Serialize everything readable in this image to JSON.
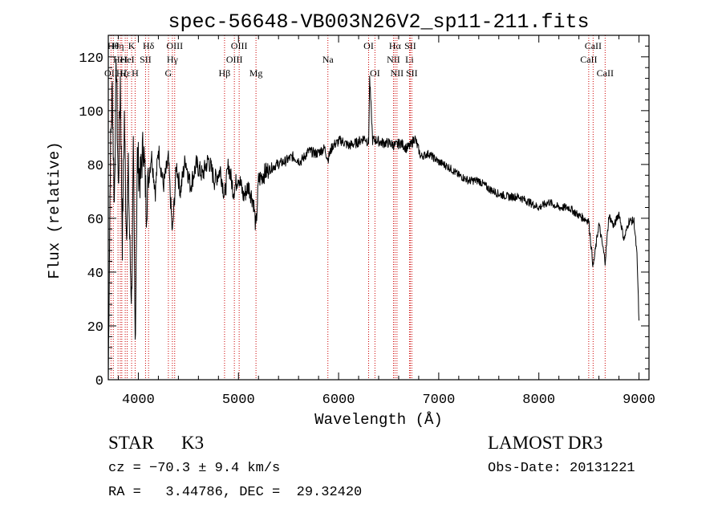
{
  "chart_data": {
    "type": "line",
    "title": "spec-56648-VB003N26V2_sp11-211.fits",
    "xlabel": "Wavelength (Å)",
    "ylabel": "Flux (relative)",
    "xlim": [
      3700,
      9100
    ],
    "ylim": [
      0,
      1280
    ],
    "xticks": [
      4000,
      5000,
      6000,
      7000,
      8000,
      9000
    ],
    "xtick_labels": [
      "4000",
      "5000",
      "6000",
      "7000",
      "8000",
      "9000"
    ],
    "yticks": [
      0,
      200,
      400,
      600,
      800,
      1000,
      1200
    ],
    "ytick_labels": [
      "0",
      "20",
      "40",
      "60",
      "80",
      "100",
      "120"
    ],
    "line_color": "#cc0000",
    "spectrum_color": "#000000",
    "series": [
      {
        "name": "flux",
        "x": [
          3700,
          3720,
          3740,
          3760,
          3780,
          3800,
          3820,
          3840,
          3860,
          3880,
          3900,
          3920,
          3933,
          3950,
          3968,
          3990,
          4020,
          4050,
          4080,
          4102,
          4130,
          4170,
          4200,
          4250,
          4300,
          4340,
          4380,
          4420,
          4470,
          4520,
          4580,
          4640,
          4700,
          4760,
          4820,
          4861,
          4900,
          4950,
          5000,
          5050,
          5100,
          5150,
          5175,
          5200,
          5240,
          5300,
          5380,
          5460,
          5540,
          5620,
          5700,
          5780,
          5860,
          5893,
          5940,
          6020,
          6100,
          6180,
          6260,
          6300,
          6310,
          6340,
          6380,
          6440,
          6500,
          6563,
          6620,
          6680,
          6720,
          6760,
          6820,
          6900,
          7000,
          7100,
          7200,
          7300,
          7400,
          7500,
          7600,
          7700,
          7800,
          7900,
          8000,
          8100,
          8200,
          8300,
          8400,
          8498,
          8542,
          8600,
          8662,
          8700,
          8750,
          8800,
          8850,
          8900,
          8950,
          8980,
          9000
        ],
        "values": [
          0,
          820,
          1080,
          650,
          1200,
          700,
          1120,
          520,
          980,
          560,
          760,
          420,
          300,
          820,
          140,
          830,
          740,
          880,
          650,
          740,
          840,
          700,
          860,
          720,
          820,
          540,
          800,
          700,
          820,
          720,
          800,
          760,
          820,
          740,
          780,
          680,
          800,
          700,
          760,
          680,
          720,
          660,
          560,
          740,
          760,
          780,
          800,
          810,
          830,
          810,
          850,
          840,
          860,
          820,
          870,
          890,
          870,
          880,
          900,
          880,
          1120,
          890,
          890,
          880,
          880,
          870,
          880,
          860,
          870,
          900,
          830,
          840,
          810,
          790,
          760,
          740,
          740,
          710,
          690,
          680,
          680,
          660,
          640,
          660,
          640,
          640,
          610,
          590,
          420,
          580,
          440,
          610,
          570,
          620,
          520,
          590,
          590,
          460,
          220
        ]
      }
    ],
    "lines": [
      {
        "w": 3727,
        "row": 3,
        "label": "OII"
      },
      {
        "w": 3750,
        "row": 1,
        "label": "Hθ"
      },
      {
        "w": 3797,
        "row": 1,
        "label": "Hη"
      },
      {
        "w": 3820,
        "row": 2,
        "label": "HeI"
      },
      {
        "w": 3835,
        "row": 3,
        "label": "Hζ"
      },
      {
        "w": 3869,
        "row": 3,
        "label": "Hε"
      },
      {
        "w": 3889,
        "row": 2,
        "label": "HeI"
      },
      {
        "w": 3933,
        "row": 1,
        "label": "K"
      },
      {
        "w": 3968,
        "row": 3,
        "label": "H"
      },
      {
        "w": 4072,
        "row": 2,
        "label": "SII"
      },
      {
        "w": 4102,
        "row": 1,
        "label": "Hδ"
      },
      {
        "w": 4300,
        "row": 3,
        "label": "G"
      },
      {
        "w": 4340,
        "row": 2,
        "label": "Hγ"
      },
      {
        "w": 4363,
        "row": 1,
        "label": "OIII"
      },
      {
        "w": 4861,
        "row": 3,
        "label": "Hβ"
      },
      {
        "w": 4959,
        "row": 2,
        "label": "OIII"
      },
      {
        "w": 5007,
        "row": 1,
        "label": "OIII"
      },
      {
        "w": 5175,
        "row": 3,
        "label": "Mg"
      },
      {
        "w": 5893,
        "row": 2,
        "label": "Na"
      },
      {
        "w": 6300,
        "row": 1,
        "label": "OI"
      },
      {
        "w": 6363,
        "row": 3,
        "label": "OI"
      },
      {
        "w": 6548,
        "row": 2,
        "label": "NII"
      },
      {
        "w": 6563,
        "row": 1,
        "label": "Hα"
      },
      {
        "w": 6583,
        "row": 3,
        "label": "NII"
      },
      {
        "w": 6708,
        "row": 2,
        "label": "Li"
      },
      {
        "w": 6716,
        "row": 1,
        "label": "SII"
      },
      {
        "w": 6731,
        "row": 3,
        "label": "SII"
      },
      {
        "w": 8498,
        "row": 2,
        "label": "CaII"
      },
      {
        "w": 8542,
        "row": 1,
        "label": "CaII"
      },
      {
        "w": 8662,
        "row": 3,
        "label": "CaII"
      }
    ]
  },
  "footer": {
    "class_label": "STAR",
    "subclass": "K3",
    "survey": "LAMOST DR3",
    "cz": "cz = −70.3 ± 9.4 km/s",
    "obs_date": "Obs-Date: 20131221",
    "radec": "RA =   3.44786, DEC =  29.32420"
  }
}
